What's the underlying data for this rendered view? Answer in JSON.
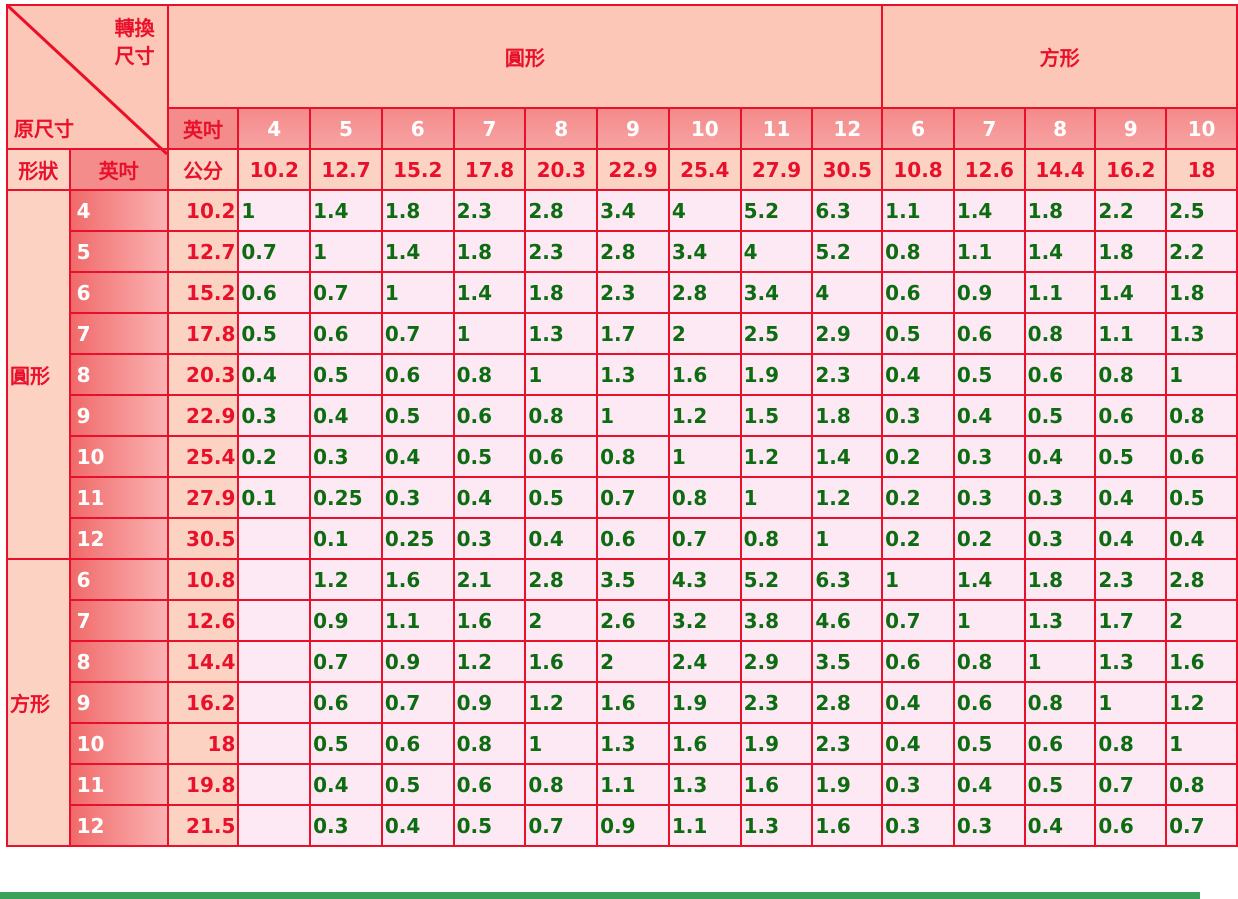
{
  "corner": {
    "top_label_1": "轉換",
    "top_label_2": "尺寸",
    "bottom_label": "原尺寸"
  },
  "groups": {
    "round": "圓形",
    "square": "方形"
  },
  "header": {
    "inch_label": "英吋",
    "cm_label": "公分",
    "shape_label": "形狀",
    "row_inch_label": "英吋"
  },
  "columns": [
    {
      "inch": "4",
      "cm": "10.2"
    },
    {
      "inch": "5",
      "cm": "12.7"
    },
    {
      "inch": "6",
      "cm": "15.2"
    },
    {
      "inch": "7",
      "cm": "17.8"
    },
    {
      "inch": "8",
      "cm": "20.3"
    },
    {
      "inch": "9",
      "cm": "22.9"
    },
    {
      "inch": "10",
      "cm": "25.4"
    },
    {
      "inch": "11",
      "cm": "27.9"
    },
    {
      "inch": "12",
      "cm": "30.5"
    },
    {
      "inch": "6",
      "cm": "10.8"
    },
    {
      "inch": "7",
      "cm": "12.6"
    },
    {
      "inch": "8",
      "cm": "14.4"
    },
    {
      "inch": "9",
      "cm": "16.2"
    },
    {
      "inch": "10",
      "cm": "18"
    }
  ],
  "row_groups": [
    {
      "label": "圓形",
      "rows": [
        {
          "inch": "4",
          "cm": "10.2",
          "values": [
            "1",
            "1.4",
            "1.8",
            "2.3",
            "2.8",
            "3.4",
            "4",
            "5.2",
            "6.3",
            "1.1",
            "1.4",
            "1.8",
            "2.2",
            "2.5"
          ]
        },
        {
          "inch": "5",
          "cm": "12.7",
          "values": [
            "0.7",
            "1",
            "1.4",
            "1.8",
            "2.3",
            "2.8",
            "3.4",
            "4",
            "5.2",
            "0.8",
            "1.1",
            "1.4",
            "1.8",
            "2.2"
          ]
        },
        {
          "inch": "6",
          "cm": "15.2",
          "values": [
            "0.6",
            "0.7",
            "1",
            "1.4",
            "1.8",
            "2.3",
            "2.8",
            "3.4",
            "4",
            "0.6",
            "0.9",
            "1.1",
            "1.4",
            "1.8"
          ]
        },
        {
          "inch": "7",
          "cm": "17.8",
          "values": [
            "0.5",
            "0.6",
            "0.7",
            "1",
            "1.3",
            "1.7",
            "2",
            "2.5",
            "2.9",
            "0.5",
            "0.6",
            "0.8",
            "1.1",
            "1.3"
          ]
        },
        {
          "inch": "8",
          "cm": "20.3",
          "values": [
            "0.4",
            "0.5",
            "0.6",
            "0.8",
            "1",
            "1.3",
            "1.6",
            "1.9",
            "2.3",
            "0.4",
            "0.5",
            "0.6",
            "0.8",
            "1"
          ]
        },
        {
          "inch": "9",
          "cm": "22.9",
          "values": [
            "0.3",
            "0.4",
            "0.5",
            "0.6",
            "0.8",
            "1",
            "1.2",
            "1.5",
            "1.8",
            "0.3",
            "0.4",
            "0.5",
            "0.6",
            "0.8"
          ]
        },
        {
          "inch": "10",
          "cm": "25.4",
          "values": [
            "0.2",
            "0.3",
            "0.4",
            "0.5",
            "0.6",
            "0.8",
            "1",
            "1.2",
            "1.4",
            "0.2",
            "0.3",
            "0.4",
            "0.5",
            "0.6"
          ]
        },
        {
          "inch": "11",
          "cm": "27.9",
          "values": [
            "0.1",
            "0.25",
            "0.3",
            "0.4",
            "0.5",
            "0.7",
            "0.8",
            "1",
            "1.2",
            "0.2",
            "0.3",
            "0.3",
            "0.4",
            "0.5"
          ]
        },
        {
          "inch": "12",
          "cm": "30.5",
          "values": [
            "",
            "0.1",
            "0.25",
            "0.3",
            "0.4",
            "0.6",
            "0.7",
            "0.8",
            "1",
            "0.2",
            "0.2",
            "0.3",
            "0.4",
            "0.4"
          ]
        }
      ]
    },
    {
      "label": "方形",
      "rows": [
        {
          "inch": "6",
          "cm": "10.8",
          "values": [
            "",
            "1.2",
            "1.6",
            "2.1",
            "2.8",
            "3.5",
            "4.3",
            "5.2",
            "6.3",
            "1",
            "1.4",
            "1.8",
            "2.3",
            "2.8"
          ]
        },
        {
          "inch": "7",
          "cm": "12.6",
          "values": [
            "",
            "0.9",
            "1.1",
            "1.6",
            "2",
            "2.6",
            "3.2",
            "3.8",
            "4.6",
            "0.7",
            "1",
            "1.3",
            "1.7",
            "2"
          ]
        },
        {
          "inch": "8",
          "cm": "14.4",
          "values": [
            "",
            "0.7",
            "0.9",
            "1.2",
            "1.6",
            "2",
            "2.4",
            "2.9",
            "3.5",
            "0.6",
            "0.8",
            "1",
            "1.3",
            "1.6"
          ]
        },
        {
          "inch": "9",
          "cm": "16.2",
          "values": [
            "",
            "0.6",
            "0.7",
            "0.9",
            "1.2",
            "1.6",
            "1.9",
            "2.3",
            "2.8",
            "0.4",
            "0.6",
            "0.8",
            "1",
            "1.2"
          ]
        },
        {
          "inch": "10",
          "cm": "18",
          "values": [
            "",
            "0.5",
            "0.6",
            "0.8",
            "1",
            "1.3",
            "1.6",
            "1.9",
            "2.3",
            "0.4",
            "0.5",
            "0.6",
            "0.8",
            "1"
          ]
        },
        {
          "inch": "11",
          "cm": "19.8",
          "values": [
            "",
            "0.4",
            "0.5",
            "0.6",
            "0.8",
            "1.1",
            "1.3",
            "1.6",
            "1.9",
            "0.3",
            "0.4",
            "0.5",
            "0.7",
            "0.8"
          ]
        },
        {
          "inch": "12",
          "cm": "21.5",
          "values": [
            "",
            "0.3",
            "0.4",
            "0.5",
            "0.7",
            "0.9",
            "1.1",
            "1.3",
            "1.6",
            "0.3",
            "0.3",
            "0.4",
            "0.6",
            "0.7"
          ]
        }
      ]
    }
  ],
  "colors": {
    "border": "#e8102a",
    "header_bg": "#fcc7b6",
    "value_text": "#0d6b12",
    "cell_bg": "#fde9f3"
  }
}
